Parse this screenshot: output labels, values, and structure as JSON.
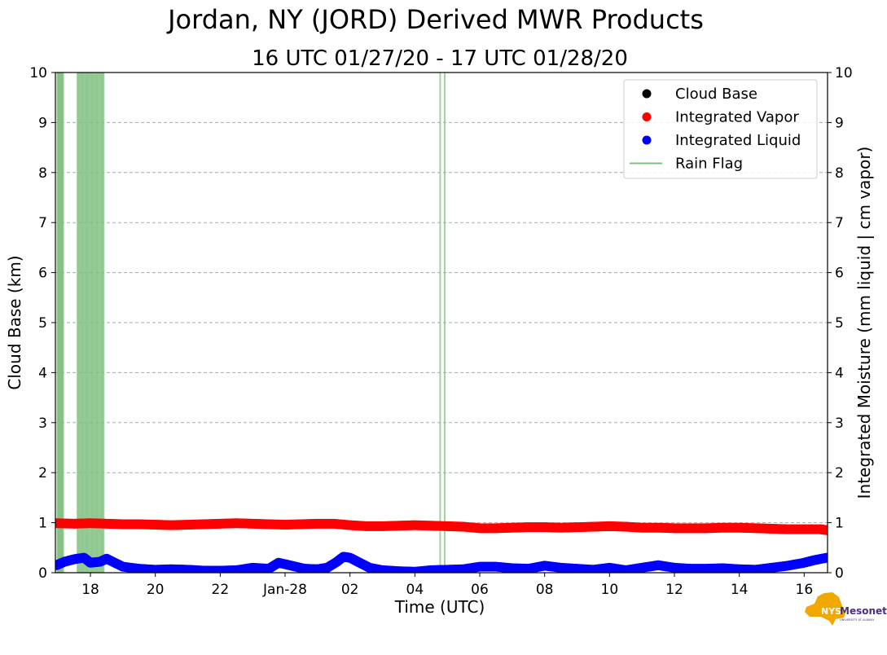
{
  "chart_data": {
    "type": "scatter",
    "title": "Jordan, NY (JORD) Derived MWR Products",
    "subtitle": "16 UTC 01/27/20 - 17 UTC 01/28/20",
    "xlabel": "Time (UTC)",
    "ylabel": "Cloud Base (km)",
    "ylabel_right": "Integrated Moisture (mm liquid | cm vapor)",
    "x_unit": "hours since 16 UTC 01/27/20",
    "xlim": [
      16.92,
      40.72
    ],
    "ylim": [
      0,
      10
    ],
    "ylim_right": [
      0,
      10
    ],
    "x_ticks": [
      {
        "x": 18,
        "label": "18"
      },
      {
        "x": 20,
        "label": "20"
      },
      {
        "x": 22,
        "label": "22"
      },
      {
        "x": 24,
        "label": "Jan-28"
      },
      {
        "x": 26,
        "label": "02"
      },
      {
        "x": 28,
        "label": "04"
      },
      {
        "x": 30,
        "label": "06"
      },
      {
        "x": 32,
        "label": "08"
      },
      {
        "x": 34,
        "label": "10"
      },
      {
        "x": 36,
        "label": "12"
      },
      {
        "x": 38,
        "label": "14"
      },
      {
        "x": 40,
        "label": "16"
      }
    ],
    "y_ticks": [
      "0",
      "1",
      "2",
      "3",
      "4",
      "5",
      "6",
      "7",
      "8",
      "9",
      "10"
    ],
    "grid": "horizontal dashed",
    "legend_position": "top-right",
    "legend": [
      {
        "label": "Cloud Base",
        "color": "#000000",
        "marker": "dot"
      },
      {
        "label": "Integrated Vapor",
        "color": "#ff0000",
        "marker": "dot"
      },
      {
        "label": "Integrated Liquid",
        "color": "#0000ff",
        "marker": "dot"
      },
      {
        "label": "Rain Flag",
        "color": "#7fbf7f",
        "marker": "line"
      }
    ],
    "series": [
      {
        "name": "Integrated Vapor",
        "color": "#ff0000",
        "x": [
          16.95,
          17.5,
          18.0,
          18.5,
          19.0,
          19.5,
          20.0,
          20.5,
          21.0,
          21.5,
          22.0,
          22.5,
          23.0,
          23.5,
          24.0,
          24.5,
          25.0,
          25.5,
          26.0,
          26.5,
          27.0,
          27.5,
          28.0,
          28.5,
          29.0,
          29.5,
          30.0,
          30.5,
          31.0,
          31.5,
          32.0,
          32.5,
          33.0,
          33.5,
          34.0,
          34.5,
          35.0,
          35.5,
          36.0,
          36.5,
          37.0,
          37.5,
          38.0,
          38.5,
          39.0,
          39.5,
          40.0,
          40.5,
          40.7
        ],
        "y": [
          0.99,
          0.98,
          0.99,
          0.98,
          0.97,
          0.97,
          0.96,
          0.95,
          0.96,
          0.97,
          0.98,
          0.99,
          0.98,
          0.97,
          0.96,
          0.97,
          0.98,
          0.98,
          0.95,
          0.93,
          0.93,
          0.94,
          0.95,
          0.94,
          0.93,
          0.92,
          0.89,
          0.89,
          0.9,
          0.91,
          0.91,
          0.9,
          0.91,
          0.92,
          0.93,
          0.92,
          0.9,
          0.9,
          0.89,
          0.89,
          0.89,
          0.9,
          0.9,
          0.89,
          0.88,
          0.87,
          0.87,
          0.87,
          0.85
        ]
      },
      {
        "name": "Integrated Liquid",
        "color": "#0000ff",
        "x": [
          16.95,
          17.2,
          17.5,
          17.8,
          18.0,
          18.3,
          18.5,
          19.0,
          19.5,
          20.0,
          20.5,
          21.0,
          21.5,
          22.0,
          22.5,
          23.0,
          23.5,
          23.8,
          24.2,
          24.6,
          25.0,
          25.3,
          25.6,
          25.8,
          26.0,
          26.3,
          26.6,
          27.0,
          27.5,
          28.0,
          28.5,
          29.0,
          29.5,
          30.0,
          30.5,
          31.0,
          31.5,
          32.0,
          32.5,
          33.0,
          33.5,
          34.0,
          34.5,
          35.0,
          35.5,
          36.0,
          36.5,
          37.0,
          37.5,
          38.0,
          38.5,
          39.0,
          39.5,
          40.0,
          40.3,
          40.7
        ],
        "y": [
          0.15,
          0.22,
          0.27,
          0.3,
          0.2,
          0.22,
          0.28,
          0.12,
          0.08,
          0.06,
          0.07,
          0.06,
          0.04,
          0.04,
          0.05,
          0.1,
          0.08,
          0.2,
          0.14,
          0.08,
          0.07,
          0.1,
          0.22,
          0.32,
          0.3,
          0.2,
          0.1,
          0.05,
          0.03,
          0.02,
          0.05,
          0.06,
          0.07,
          0.12,
          0.12,
          0.09,
          0.08,
          0.14,
          0.1,
          0.08,
          0.06,
          0.1,
          0.05,
          0.1,
          0.15,
          0.1,
          0.08,
          0.08,
          0.09,
          0.07,
          0.06,
          0.1,
          0.14,
          0.2,
          0.25,
          0.3
        ]
      },
      {
        "name": "Cloud Base",
        "color": "#000000",
        "x": [],
        "y": []
      }
    ],
    "rain_flag": {
      "color": "#7fbf7f",
      "times": [
        16.98,
        17.0,
        17.02,
        17.04,
        17.06,
        17.08,
        17.1,
        17.12,
        17.14,
        17.16,
        17.6,
        17.63,
        17.66,
        17.69,
        17.72,
        17.75,
        17.78,
        17.81,
        17.84,
        17.87,
        17.9,
        17.93,
        17.96,
        17.99,
        18.02,
        18.05,
        18.08,
        18.11,
        18.14,
        18.17,
        18.2,
        18.23,
        18.26,
        18.29,
        18.32,
        18.35,
        18.38,
        18.41,
        28.78,
        28.92
      ]
    }
  },
  "logo": {
    "name": "NYS Mesonet",
    "brand": "NYS",
    "text": "Mesonet",
    "subtext": "UNIVERSITY AT ALBANY",
    "state_color": "#f0a800",
    "text_color": "#4b2e83"
  }
}
